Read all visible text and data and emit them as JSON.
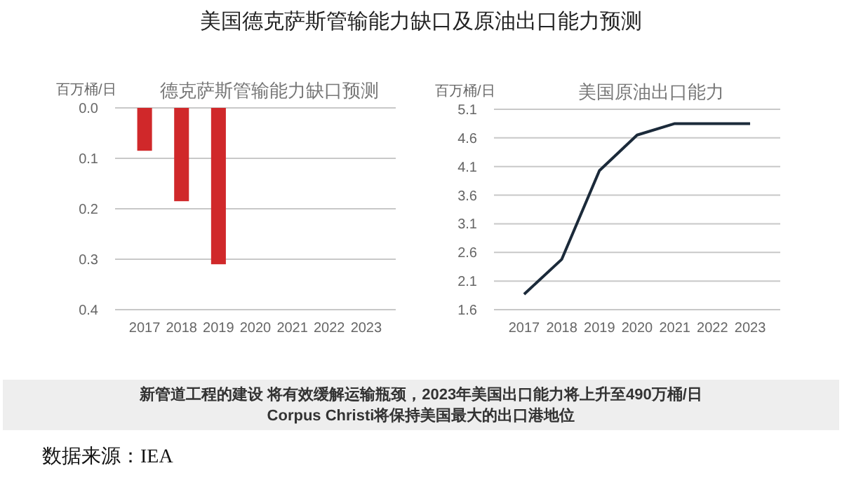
{
  "chart_data": [
    {
      "type": "other",
      "title": "美国德克萨斯管输能力缺口及原油出口能力预测",
      "annotations": [
        "新管道工程的建设 将有效缓解运输瓶颈，2023年美国出口能力将上升至490万桶/日",
        "Corpus Christi将保持美国最大的出口港地位",
        "数据来源：IEA"
      ]
    },
    {
      "type": "bar",
      "title": "德克萨斯管输能力缺口预测",
      "ylabel": "百万桶/日",
      "categories": [
        "2017",
        "2018",
        "2019",
        "2020",
        "2021",
        "2022",
        "2023"
      ],
      "values": [
        0.085,
        0.185,
        0.31,
        null,
        null,
        null,
        null
      ],
      "color": "#d0282a",
      "ylim": [
        0.4,
        0
      ],
      "yticks": [
        {
          "value": 0,
          "label": "0.0"
        },
        0.1,
        0.2,
        0.3,
        0.4
      ],
      "grid": "y"
    },
    {
      "type": "line",
      "title": "美国原油出口能力",
      "ylabel": "百万桶/日",
      "categories": [
        "2017",
        "2018",
        "2019",
        "2020",
        "2021",
        "2022",
        "2023"
      ],
      "values": [
        1.87,
        2.48,
        4.03,
        4.65,
        4.85,
        4.85,
        4.85
      ],
      "color": "#1b2a3a",
      "ylim": [
        1.6,
        5.1
      ],
      "yticks": [
        1.6,
        2.1,
        2.6,
        3.1,
        3.6,
        4.1,
        4.6,
        5.1
      ],
      "grid": "y",
      "marker": "none"
    }
  ]
}
